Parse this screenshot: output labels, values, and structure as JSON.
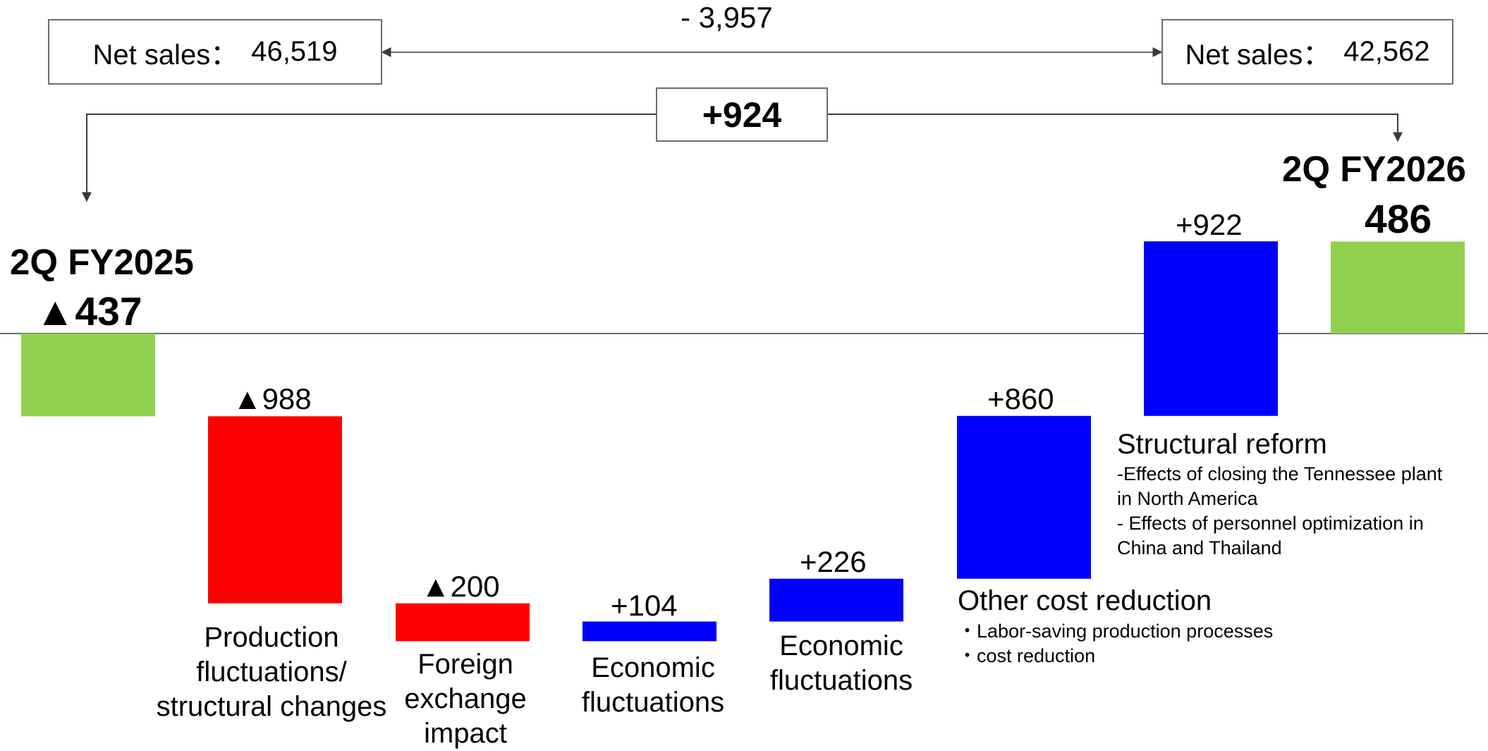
{
  "net_sales": {
    "left": {
      "label": "Net sales：",
      "value": "46,519"
    },
    "right": {
      "label": "Net sales：",
      "value": "42,562"
    },
    "change": "- 3,957"
  },
  "change_total": "+924",
  "chart_data": {
    "type": "waterfall",
    "unit": "",
    "start": {
      "label": "2Q FY2025",
      "value": -437,
      "display": "▲437"
    },
    "end": {
      "label": "2Q FY2026",
      "value": 486,
      "display": "486"
    },
    "steps": [
      {
        "label": "Production fluctuations/ structural changes",
        "value": -988,
        "display": "▲988"
      },
      {
        "label": "Foreign exchange impact",
        "value": -200,
        "display": "▲200"
      },
      {
        "label": "Economic fluctuations",
        "value": 104,
        "display": "+104"
      },
      {
        "label": "Economic fluctuations",
        "value": 226,
        "display": "+226"
      },
      {
        "label": "Other cost reduction",
        "value": 860,
        "display": "+860"
      },
      {
        "label": "Structural reform",
        "value": 922,
        "display": "+922"
      }
    ],
    "colors": {
      "total": "#92d050",
      "negative": "#ff0000",
      "positive": "#0000ff",
      "baseline": "#6d6d6d"
    }
  },
  "categories": {
    "production": [
      "Production",
      "fluctuations/",
      "structural changes"
    ],
    "fx": [
      "Foreign",
      "exchange",
      "impact"
    ],
    "econ1": [
      "Economic",
      "fluctuations"
    ],
    "econ2": [
      "Economic",
      "fluctuations"
    ],
    "other_cost": "Other cost reduction",
    "structural": "Structural reform"
  },
  "notes": {
    "other_cost": [
      "・Labor-saving production processes",
      "・cost reduction"
    ],
    "structural": [
      "-Effects of closing the Tennessee plant",
      "in North America",
      "- Effects of personnel optimization in",
      "China and Thailand"
    ]
  }
}
